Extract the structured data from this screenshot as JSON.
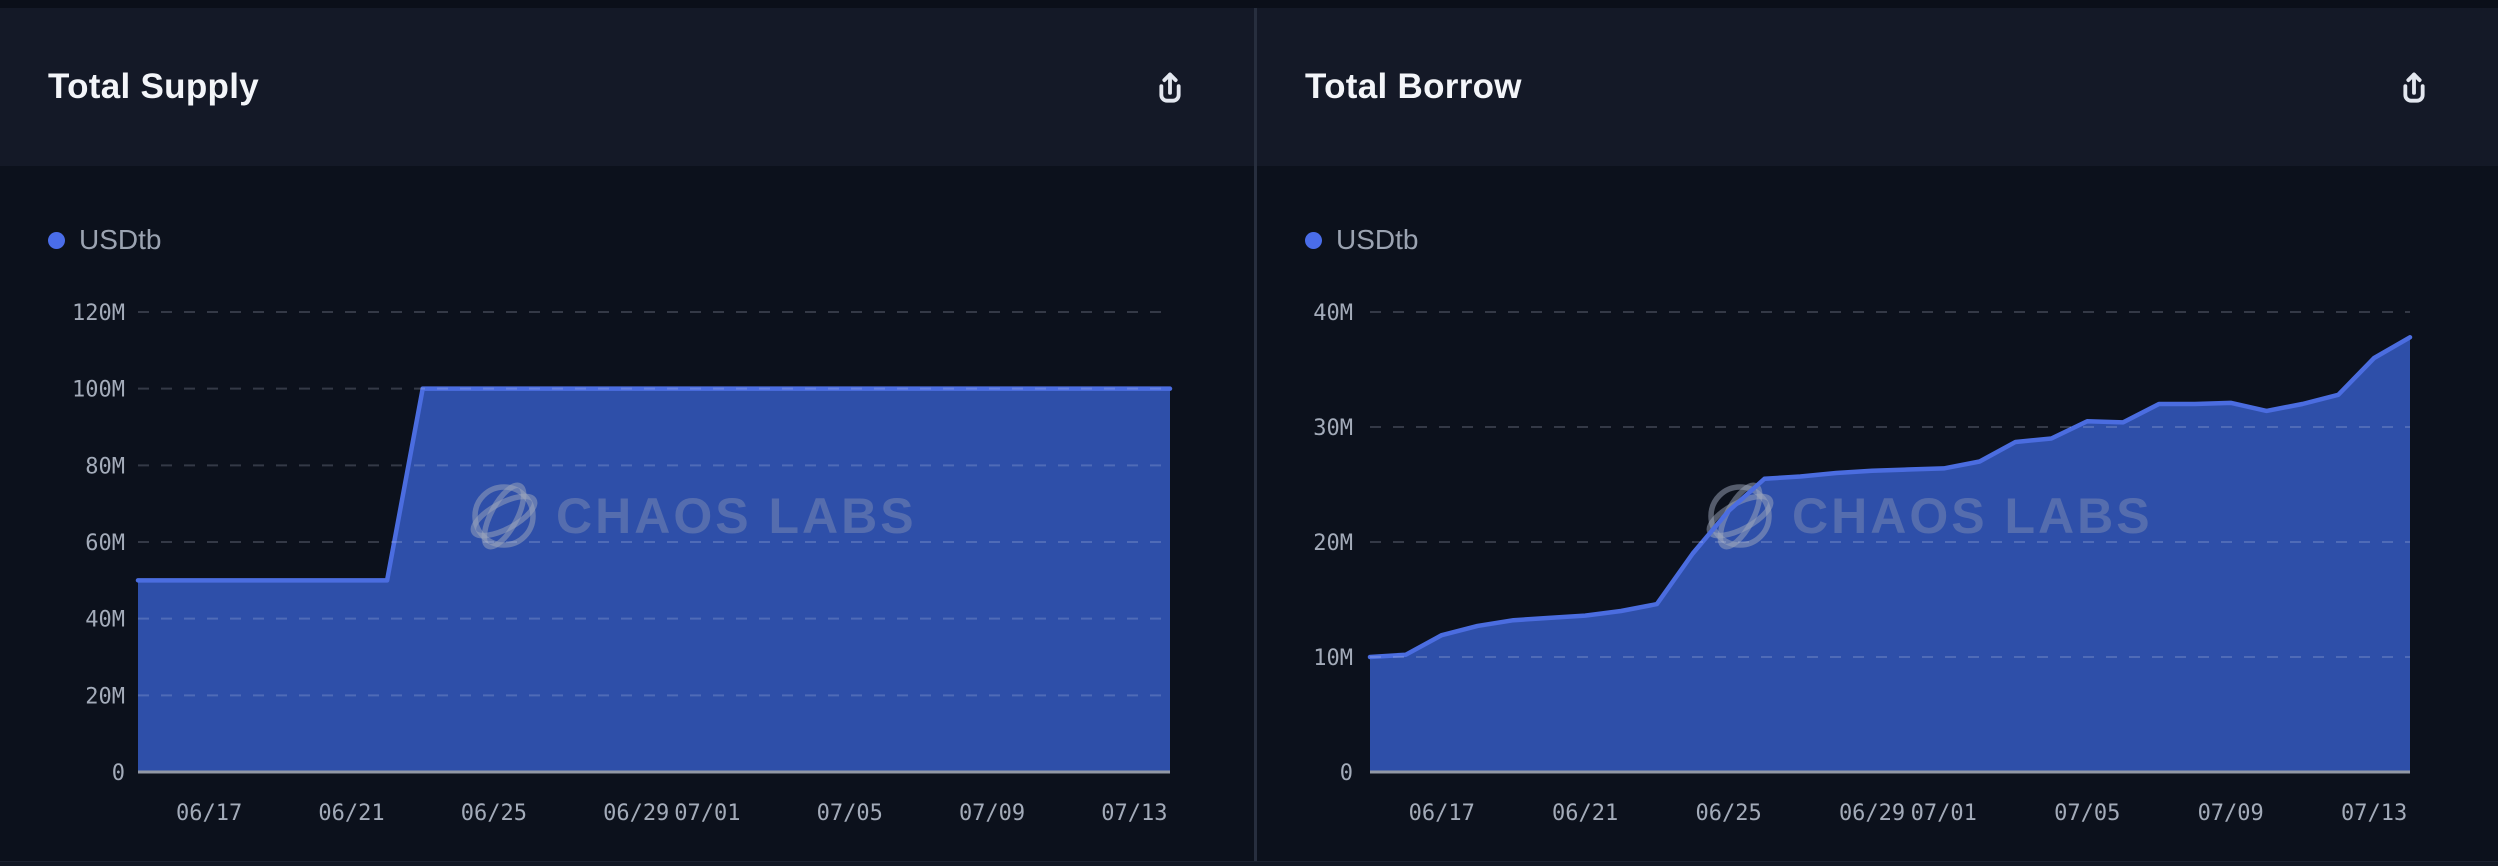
{
  "watermark": {
    "text": "CHAOS LABS"
  },
  "colors": {
    "area_fill": "#2e4fa9",
    "area_stroke": "#4b6de0",
    "legend_dot": "#4a6de9",
    "grid_line": "rgba(214,222,238,0.20)",
    "axis_line": "#9298a5",
    "tick_text": "#a3abb9",
    "header_bg": "#141927",
    "chart_bg": "#0c111c",
    "title_text": "#f3f5f9",
    "watermark_logo": "rgba(158,168,188,0.50)",
    "watermark_text": "rgba(154,164,184,0.36)"
  },
  "panels": [
    {
      "export_label": "export chart"
    },
    {
      "export_label": "export chart"
    }
  ],
  "chart_data": [
    {
      "type": "area",
      "title": "Total Supply",
      "legend_position": "top-left",
      "grid": "dashed horizontal",
      "y_unit": "millions",
      "ylim_millions": [
        0,
        120
      ],
      "y_ticks": {
        "values_millions": [
          0,
          20,
          40,
          60,
          80,
          100,
          120
        ],
        "labels": [
          "0",
          "20M",
          "40M",
          "60M",
          "80M",
          "100M",
          "120M"
        ]
      },
      "x": [
        "06/15",
        "06/16",
        "06/17",
        "06/18",
        "06/19",
        "06/20",
        "06/21",
        "06/22",
        "06/23",
        "06/24",
        "06/25",
        "06/26",
        "06/27",
        "06/28",
        "06/29",
        "06/30",
        "07/01",
        "07/02",
        "07/03",
        "07/04",
        "07/05",
        "07/06",
        "07/07",
        "07/08",
        "07/09",
        "07/10",
        "07/11",
        "07/12",
        "07/13",
        "07/14"
      ],
      "x_tick_labels": [
        "06/17",
        "06/21",
        "06/25",
        "06/29",
        "07/01",
        "07/05",
        "07/09",
        "07/13"
      ],
      "series": [
        {
          "name": "USDtb",
          "values_millions": [
            50,
            50,
            50,
            50,
            50,
            50,
            50,
            50,
            100,
            100,
            100,
            100,
            100,
            100,
            100,
            100,
            100,
            100,
            100,
            100,
            100,
            100,
            100,
            100,
            100,
            100,
            100,
            100,
            100,
            100
          ]
        }
      ]
    },
    {
      "type": "area",
      "title": "Total Borrow",
      "legend_position": "top-left",
      "grid": "dashed horizontal",
      "y_unit": "millions",
      "ylim_millions": [
        0,
        40
      ],
      "y_ticks": {
        "values_millions": [
          0,
          10,
          20,
          30,
          40
        ],
        "labels": [
          "0",
          "10M",
          "20M",
          "30M",
          "40M"
        ]
      },
      "x": [
        "06/15",
        "06/16",
        "06/17",
        "06/18",
        "06/19",
        "06/20",
        "06/21",
        "06/22",
        "06/23",
        "06/24",
        "06/25",
        "06/26",
        "06/27",
        "06/28",
        "06/29",
        "06/30",
        "07/01",
        "07/02",
        "07/03",
        "07/04",
        "07/05",
        "07/06",
        "07/07",
        "07/08",
        "07/09",
        "07/10",
        "07/11",
        "07/12",
        "07/13",
        "07/14"
      ],
      "x_tick_labels": [
        "06/17",
        "06/21",
        "06/25",
        "06/29",
        "07/01",
        "07/05",
        "07/09",
        "07/13"
      ],
      "series": [
        {
          "name": "USDtb",
          "values_millions": [
            10.0,
            10.2,
            11.9,
            12.7,
            13.2,
            13.4,
            13.6,
            14.0,
            14.6,
            19.0,
            22.7,
            25.5,
            25.7,
            26.0,
            26.2,
            26.3,
            26.4,
            27.0,
            28.7,
            29.0,
            30.5,
            30.4,
            32.0,
            32.0,
            32.1,
            31.4,
            32.0,
            32.8,
            36.0,
            37.8
          ]
        }
      ]
    }
  ]
}
